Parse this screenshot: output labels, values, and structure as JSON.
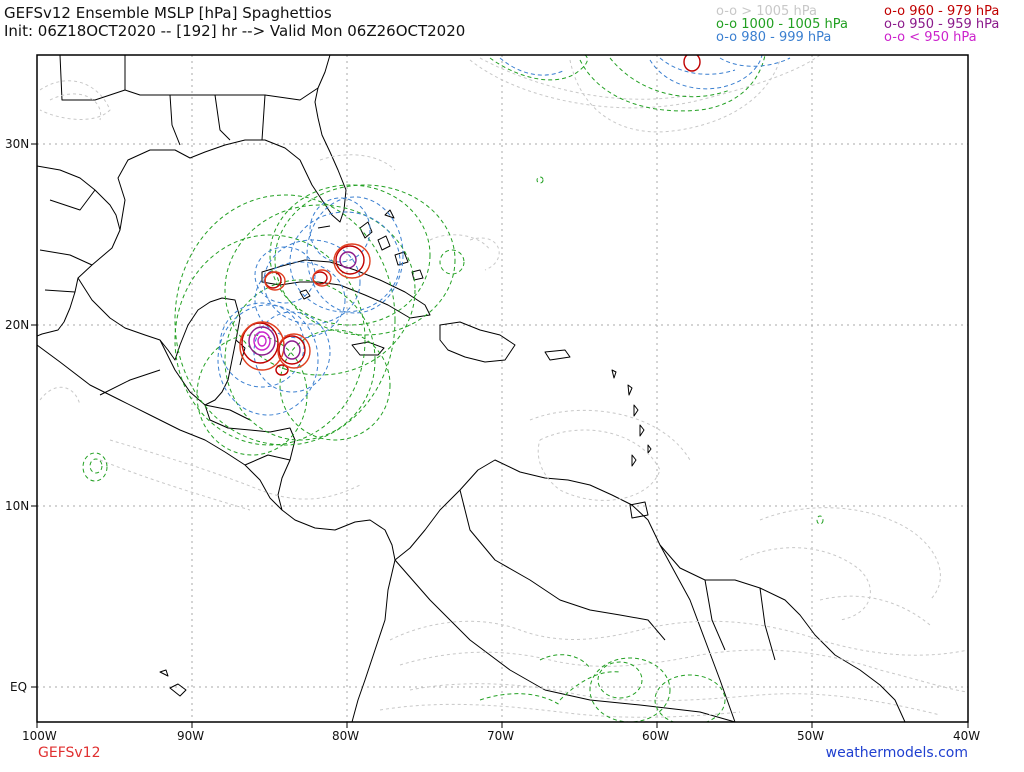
{
  "header": {
    "title_line1": "GEFSv12 Ensemble MSLP [hPa] Spaghettios",
    "title_line2": "Init: 06Z18OCT2020 -- [192] hr --> Valid Mon 06Z26OCT2020"
  },
  "legend": [
    {
      "text": "o-o > 1005 hPa",
      "color": "#c8c8c8"
    },
    {
      "text": "o-o 1000 - 1005 hPa",
      "color": "#22a022"
    },
    {
      "text": "o-o 980 - 999 hPa",
      "color": "#3a7fd0"
    },
    {
      "text": "o-o 960 - 979 hPa",
      "color": "#c00000"
    },
    {
      "text": "o-o 950 - 959 hPa",
      "color": "#8b1a8b"
    },
    {
      "text": "o-o < 950 hPa",
      "color": "#cc22cc"
    }
  ],
  "axes": {
    "x_ticks": [
      "100W",
      "90W",
      "80W",
      "70W",
      "60W",
      "50W",
      "40W"
    ],
    "y_ticks": [
      "30N",
      "20N",
      "10N",
      "EQ"
    ]
  },
  "footer": {
    "left": "GEFSv12",
    "right": "weathermodels.com",
    "left_color": "#e03030",
    "right_color": "#2040d0"
  },
  "colors": {
    "land_outline": "#000000",
    "gridline": "#aaaaaa"
  }
}
